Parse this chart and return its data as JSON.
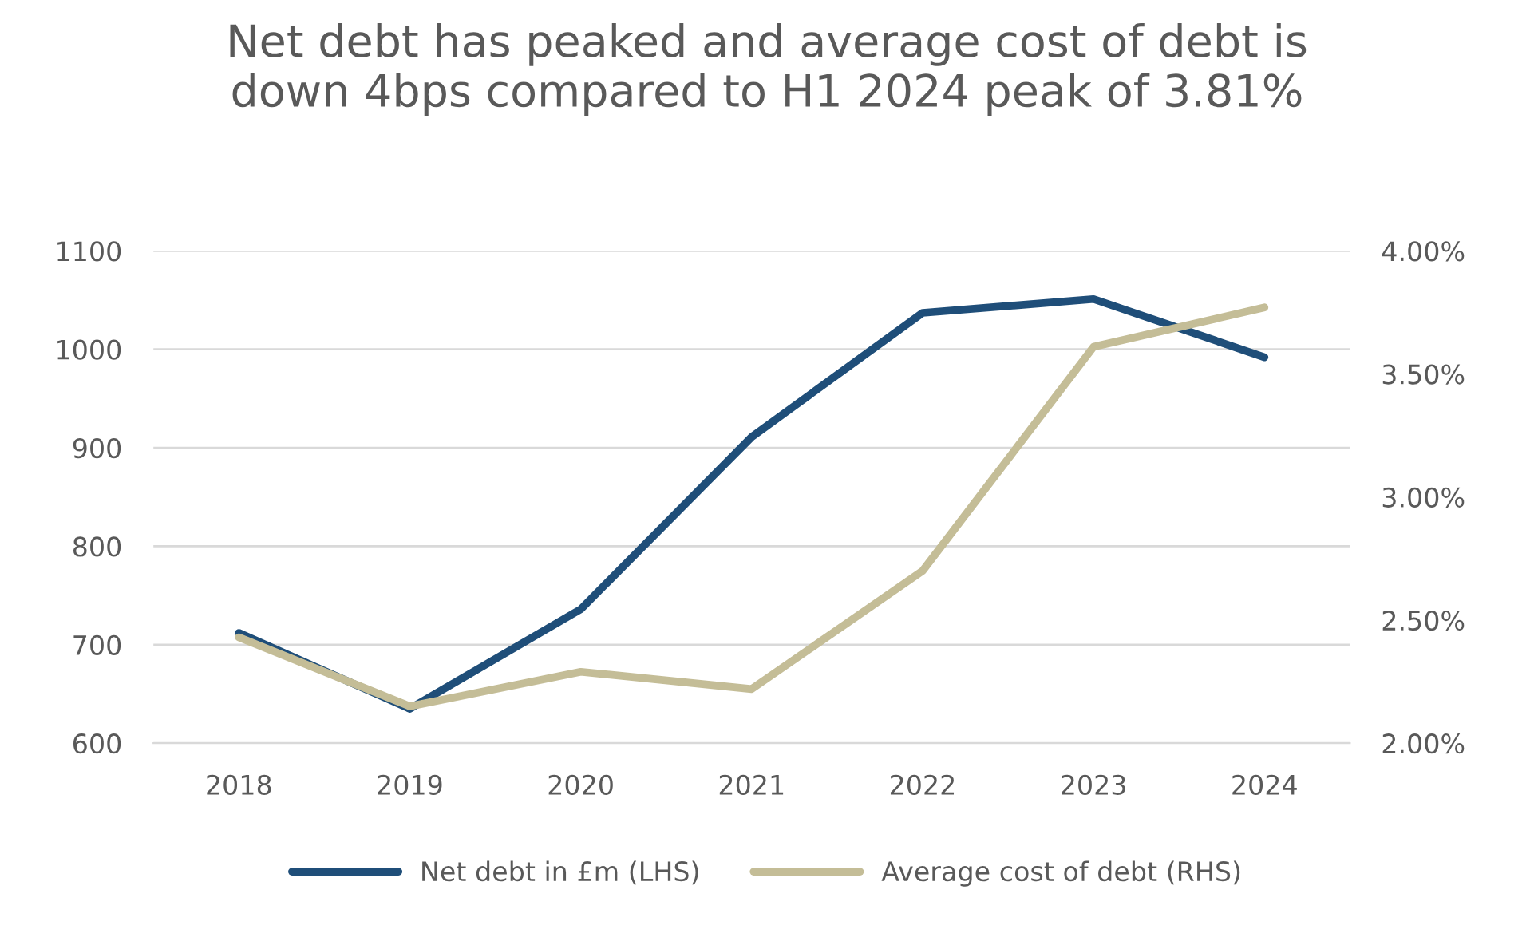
{
  "chart_data": {
    "type": "line",
    "title": "Net debt has peaked and average cost of debt is\ndown 4bps compared to H1 2024 peak of 3.81%",
    "categories": [
      "2018",
      "2019",
      "2020",
      "2021",
      "2022",
      "2023",
      "2024"
    ],
    "series": [
      {
        "name": "Net debt in £m (LHS)",
        "color": "#1f4e79",
        "values": [
          712,
          635,
          736,
          911,
          1037,
          1051,
          992
        ]
      },
      {
        "name": "Average cost of debt (RHS)",
        "color": "#c4bd97",
        "axis": "y2",
        "values": [
          2.43,
          2.15,
          2.29,
          2.22,
          2.7,
          3.61,
          3.77
        ]
      }
    ],
    "ylim": [
      600,
      1100
    ],
    "yticks": [
      600,
      700,
      800,
      900,
      1000,
      1100
    ],
    "y2lim": [
      2.0,
      4.0
    ],
    "y2ticks": [
      {
        "value": 2.0,
        "label": "2.00%"
      },
      {
        "value": 2.5,
        "label": "2.50%"
      },
      {
        "value": 3.0,
        "label": "3.00%"
      },
      {
        "value": 3.5,
        "label": "3.50%"
      },
      {
        "value": 4.0,
        "label": "4.00%"
      }
    ],
    "grid": "y",
    "legend": "bottom",
    "marker": "none",
    "line_style": "solid"
  }
}
